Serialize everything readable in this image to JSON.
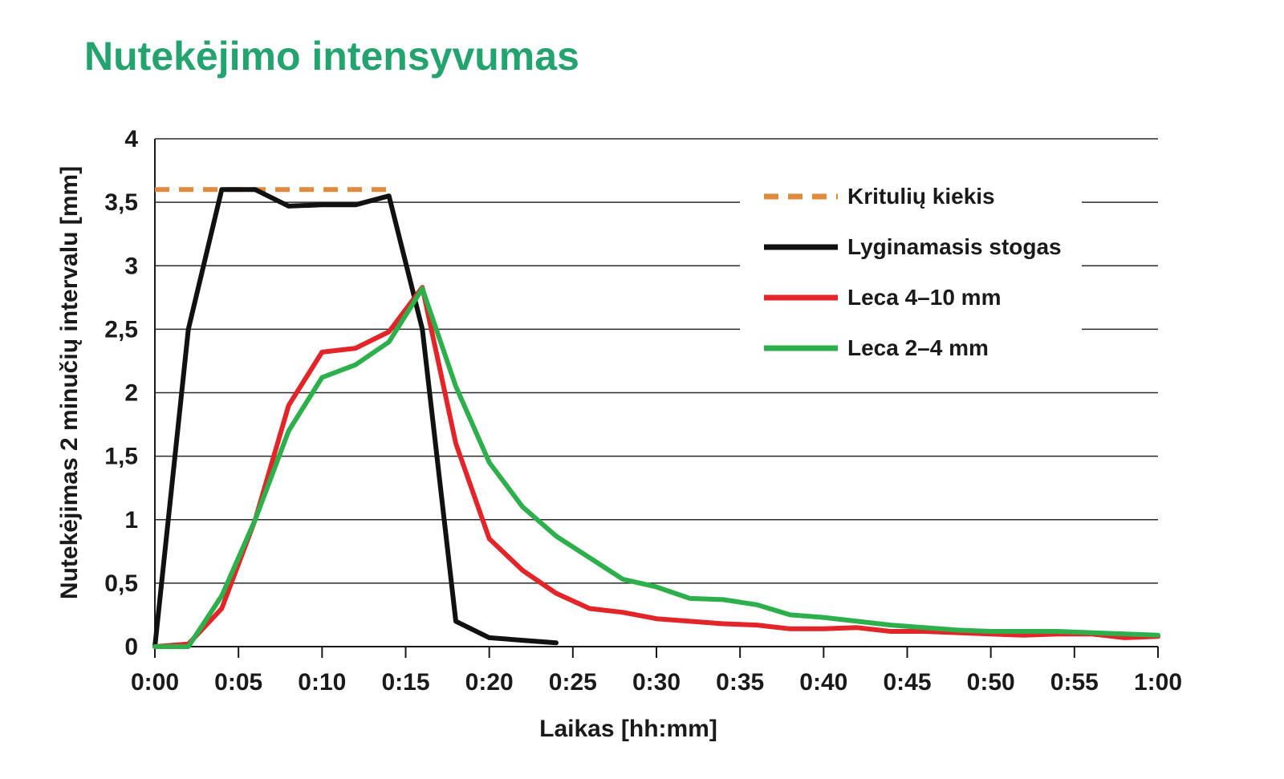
{
  "title": "Nutekėjimo intensyvumas",
  "chart_data": {
    "type": "line",
    "title": "Nutekėjimo intensyvumas",
    "xlabel": "Laikas [hh:mm]",
    "ylabel": "Nutekėjimas 2 minučių intervalu [mm]",
    "x_unit": "minutes",
    "xlim": [
      0,
      60
    ],
    "ylim": [
      0,
      4
    ],
    "x_ticks": [
      0,
      5,
      10,
      15,
      20,
      25,
      30,
      35,
      40,
      45,
      50,
      55,
      60
    ],
    "x_tick_labels": [
      "0:00",
      "0:05",
      "0:10",
      "0:15",
      "0:20",
      "0:25",
      "0:30",
      "0:35",
      "0:40",
      "0:45",
      "0:50",
      "0:55",
      "1:00"
    ],
    "y_ticks": [
      0,
      0.5,
      1,
      1.5,
      2,
      2.5,
      3,
      3.5,
      4
    ],
    "y_tick_labels": [
      "0",
      "0,5",
      "1",
      "1,5",
      "2",
      "2,5",
      "3",
      "3,5",
      "4"
    ],
    "grid": "horizontal",
    "legend_position": "top-right",
    "series": [
      {
        "name": "Kritulių kiekis",
        "color": "#e08a3c",
        "style": "dashed",
        "x": [
          0,
          14
        ],
        "y": [
          3.6,
          3.6
        ]
      },
      {
        "name": "Lyginamasis stogas",
        "color": "#111111",
        "style": "solid",
        "x": [
          0,
          2,
          4,
          6,
          8,
          10,
          12,
          14,
          16,
          18,
          20,
          22,
          24
        ],
        "y": [
          0,
          2.5,
          3.6,
          3.6,
          3.47,
          3.48,
          3.48,
          3.55,
          2.5,
          0.2,
          0.07,
          0.05,
          0.03
        ]
      },
      {
        "name": "Leca 4–10 mm",
        "color": "#e32428",
        "style": "solid",
        "x": [
          0,
          2,
          4,
          6,
          8,
          10,
          12,
          14,
          16,
          18,
          20,
          22,
          24,
          26,
          28,
          30,
          32,
          34,
          36,
          38,
          40,
          42,
          44,
          46,
          48,
          50,
          52,
          54,
          56,
          58,
          60
        ],
        "y": [
          0,
          0.02,
          0.3,
          1.0,
          1.9,
          2.32,
          2.35,
          2.48,
          2.83,
          1.6,
          0.85,
          0.6,
          0.42,
          0.3,
          0.27,
          0.22,
          0.2,
          0.18,
          0.17,
          0.14,
          0.14,
          0.15,
          0.12,
          0.12,
          0.11,
          0.1,
          0.09,
          0.1,
          0.1,
          0.07,
          0.08
        ]
      },
      {
        "name": "Leca 2–4 mm",
        "color": "#2db04b",
        "style": "solid",
        "x": [
          0,
          2,
          4,
          6,
          8,
          10,
          12,
          14,
          16,
          18,
          20,
          22,
          24,
          26,
          28,
          30,
          32,
          34,
          36,
          38,
          40,
          42,
          44,
          46,
          48,
          50,
          52,
          54,
          56,
          58,
          60
        ],
        "y": [
          0,
          0,
          0.4,
          1.0,
          1.7,
          2.12,
          2.22,
          2.4,
          2.82,
          2.05,
          1.45,
          1.1,
          0.87,
          0.7,
          0.53,
          0.47,
          0.38,
          0.37,
          0.33,
          0.25,
          0.23,
          0.2,
          0.17,
          0.15,
          0.13,
          0.12,
          0.12,
          0.12,
          0.11,
          0.1,
          0.09
        ]
      }
    ]
  }
}
